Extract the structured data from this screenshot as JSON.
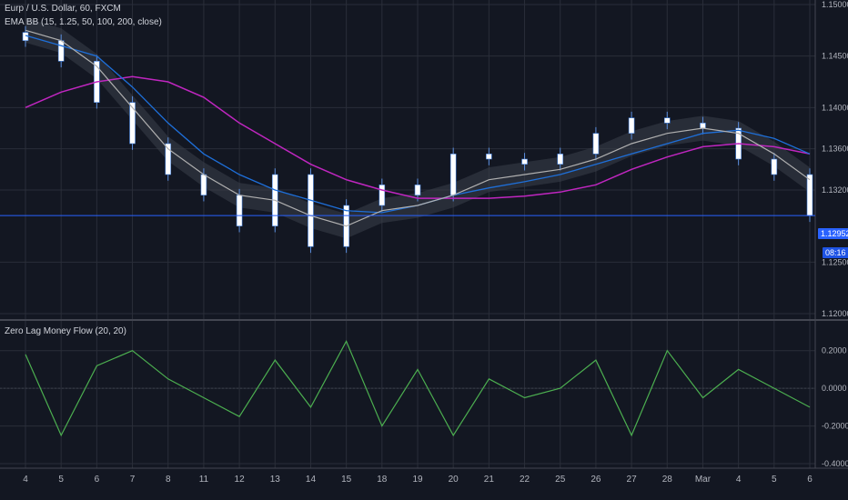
{
  "header": {
    "symbol_title": "Eurp / U.S. Dollar, 60, FXCM",
    "main_indicator": "EMA BB (15, 1.25, 50, 100, 200, close)",
    "sub_indicator": "Zero Lag Money Flow (20, 20)"
  },
  "price_axis": {
    "ticks": [
      "1.15000",
      "1.14500",
      "1.14000",
      "1.13600",
      "1.13200",
      "1.12500",
      "1.12000"
    ],
    "last_price": "1.12952",
    "countdown": "08:16"
  },
  "oscillator_axis": {
    "ticks": [
      "0.2000",
      "0.0000",
      "-0.2000",
      "-0.4000"
    ]
  },
  "time_axis": {
    "labels": [
      "4",
      "5",
      "6",
      "7",
      "8",
      "11",
      "12",
      "13",
      "14",
      "15",
      "18",
      "19",
      "20",
      "21",
      "22",
      "25",
      "26",
      "27",
      "28",
      "Mar",
      "4",
      "5",
      "6"
    ]
  },
  "colors": {
    "background": "#131722",
    "grid": "#2a2e39",
    "candle": "#ffffff",
    "bb_band": "#3a3f4b",
    "ema_50": "#b0b0b0",
    "ema_100": "#1e6fd9",
    "ema_200": "#c026c0",
    "last_price_line": "#2962ff",
    "oscillator": "#4caf50"
  },
  "chart_data": [
    {
      "type": "line",
      "title": "Eurp / U.S. Dollar, 60, FXCM",
      "x": [
        "4",
        "5",
        "6",
        "7",
        "8",
        "11",
        "12",
        "13",
        "14",
        "15",
        "18",
        "19",
        "20",
        "21",
        "22",
        "25",
        "26",
        "27",
        "28",
        "Mar",
        "4",
        "5",
        "6"
      ],
      "ylim": [
        1.12,
        1.15
      ],
      "series": [
        {
          "name": "close",
          "values": [
            1.1465,
            1.1445,
            1.1405,
            1.1365,
            1.1335,
            1.1315,
            1.1285,
            1.1335,
            1.1265,
            1.1305,
            1.1325,
            1.1315,
            1.1355,
            1.135,
            1.1345,
            1.1355,
            1.1375,
            1.139,
            1.1385,
            1.138,
            1.135,
            1.1335,
            1.1295
          ]
        },
        {
          "name": "EMA 50",
          "values": [
            1.1475,
            1.1465,
            1.144,
            1.14,
            1.136,
            1.1335,
            1.1315,
            1.131,
            1.1295,
            1.1285,
            1.13,
            1.1305,
            1.1315,
            1.133,
            1.1335,
            1.134,
            1.135,
            1.1365,
            1.1375,
            1.138,
            1.1375,
            1.1355,
            1.133
          ]
        },
        {
          "name": "EMA 100",
          "values": [
            1.147,
            1.146,
            1.145,
            1.142,
            1.1385,
            1.1355,
            1.1335,
            1.132,
            1.131,
            1.13,
            1.1298,
            1.1305,
            1.1315,
            1.1322,
            1.1328,
            1.1335,
            1.1345,
            1.1355,
            1.1365,
            1.1375,
            1.1378,
            1.137,
            1.1355
          ]
        },
        {
          "name": "EMA 200",
          "values": [
            1.14,
            1.1415,
            1.1425,
            1.143,
            1.1425,
            1.141,
            1.1385,
            1.1365,
            1.1345,
            1.133,
            1.132,
            1.1312,
            1.1312,
            1.1312,
            1.1314,
            1.1318,
            1.1325,
            1.134,
            1.1352,
            1.1362,
            1.1365,
            1.1362,
            1.1355
          ]
        }
      ]
    },
    {
      "type": "line",
      "title": "Zero Lag Money Flow (20, 20)",
      "x": [
        "4",
        "5",
        "6",
        "7",
        "8",
        "11",
        "12",
        "13",
        "14",
        "15",
        "18",
        "19",
        "20",
        "21",
        "22",
        "25",
        "26",
        "27",
        "28",
        "Mar",
        "4",
        "5",
        "6"
      ],
      "ylim": [
        -0.4,
        0.3
      ],
      "series": [
        {
          "name": "Zero Lag Money Flow",
          "values": [
            0.18,
            -0.25,
            0.12,
            0.2,
            0.05,
            -0.05,
            -0.15,
            0.15,
            -0.1,
            0.25,
            -0.2,
            0.1,
            -0.25,
            0.05,
            -0.05,
            0.0,
            0.15,
            -0.25,
            0.2,
            -0.05,
            0.1,
            0.0,
            -0.1
          ]
        }
      ]
    }
  ]
}
